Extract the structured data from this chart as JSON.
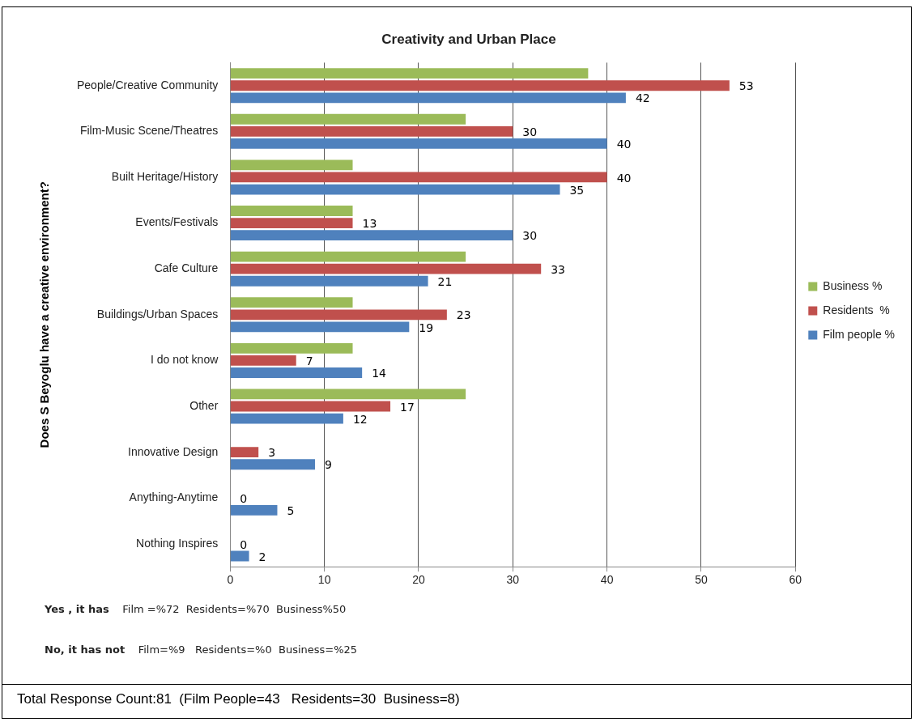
{
  "chart_data": {
    "type": "bar",
    "orientation": "horizontal",
    "title": "Creativity and Urban Place",
    "ylabel": "Does S Beyoglu have a creative environment?",
    "categories": [
      "People/Creative Community",
      "Film-Music Scene/Theatres",
      "Built Heritage/History",
      "Events/Festivals",
      "Cafe Culture",
      "Buildings/Urban Spaces",
      "I do not know",
      "Other",
      "Innovative Design",
      "Anything-Anytime",
      "Nothing Inspires"
    ],
    "series": [
      {
        "name": "Business %",
        "color": "#9bbb59",
        "values": [
          38,
          25,
          13,
          13,
          25,
          13,
          13,
          25,
          null,
          null,
          null
        ]
      },
      {
        "name": "Residents  %",
        "color": "#c0504d",
        "values": [
          53,
          30,
          40,
          13,
          33,
          23,
          7,
          17,
          3,
          0,
          0
        ],
        "value_labels": [
          "53",
          "30",
          "40",
          "13",
          "33",
          "23",
          "7",
          "17",
          "3",
          "0",
          "0"
        ]
      },
      {
        "name": "Film people %",
        "color": "#4f81bd",
        "values": [
          42,
          40,
          35,
          30,
          21,
          19,
          14,
          12,
          9,
          5,
          2
        ],
        "value_labels": [
          "42",
          "40",
          "35",
          "30",
          "21",
          "19",
          "14",
          "12",
          "9",
          "5",
          "2"
        ]
      }
    ],
    "xlim": [
      0,
      60
    ],
    "xticks": [
      0,
      10,
      20,
      30,
      40,
      50,
      60
    ],
    "grid": "x",
    "legend": "right",
    "annotations": [
      "Yes , it has",
      "Film =%72  Residents=%70  Business%50",
      "No, it has not",
      "Film=%9   Residents=%0  Business=%25",
      "Total Response Count:81  (Film People=43   Residents=30  Business=8)"
    ]
  }
}
